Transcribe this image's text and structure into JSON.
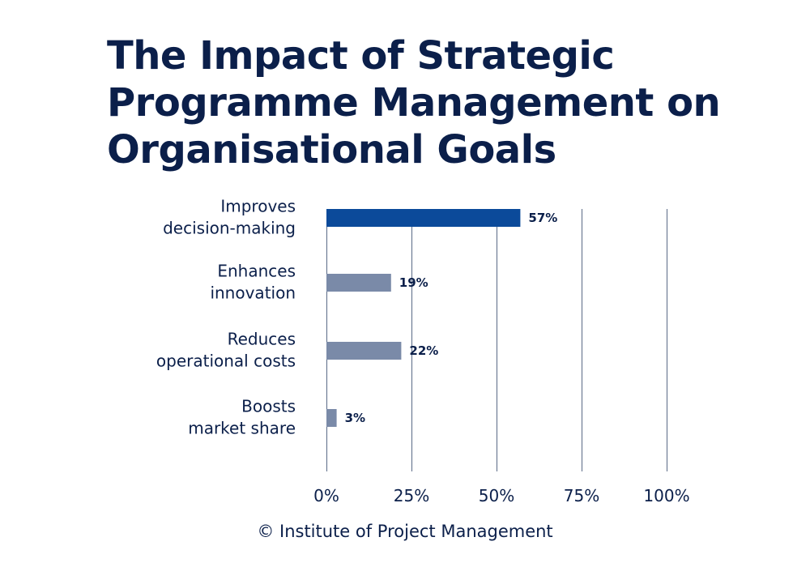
{
  "colors": {
    "highlight_bar": "#0b4a9a",
    "bar": "#7a8aa8",
    "text": "#0b1f4a",
    "grid": "#5a6a86"
  },
  "chart_data": {
    "type": "bar",
    "orientation": "horizontal",
    "title": "The Impact of Strategic Programme Management on Organisational Goals",
    "categories": [
      [
        "Improves",
        "decision-making"
      ],
      [
        "Enhances",
        "innovation"
      ],
      [
        "Reduces",
        "operational costs"
      ],
      [
        "Boosts",
        "market share"
      ]
    ],
    "values": [
      57,
      19,
      22,
      3
    ],
    "value_labels": [
      "57%",
      "19%",
      "22%",
      "3%"
    ],
    "highlight_index": 0,
    "xlim": [
      0,
      100
    ],
    "xticks": [
      0,
      25,
      50,
      75,
      100
    ],
    "xtick_labels": [
      "0%",
      "25%",
      "50%",
      "75%",
      "100%"
    ],
    "grid": "vertical",
    "legend": "none"
  },
  "footer": {
    "credit": "© Institute of Project Management"
  }
}
